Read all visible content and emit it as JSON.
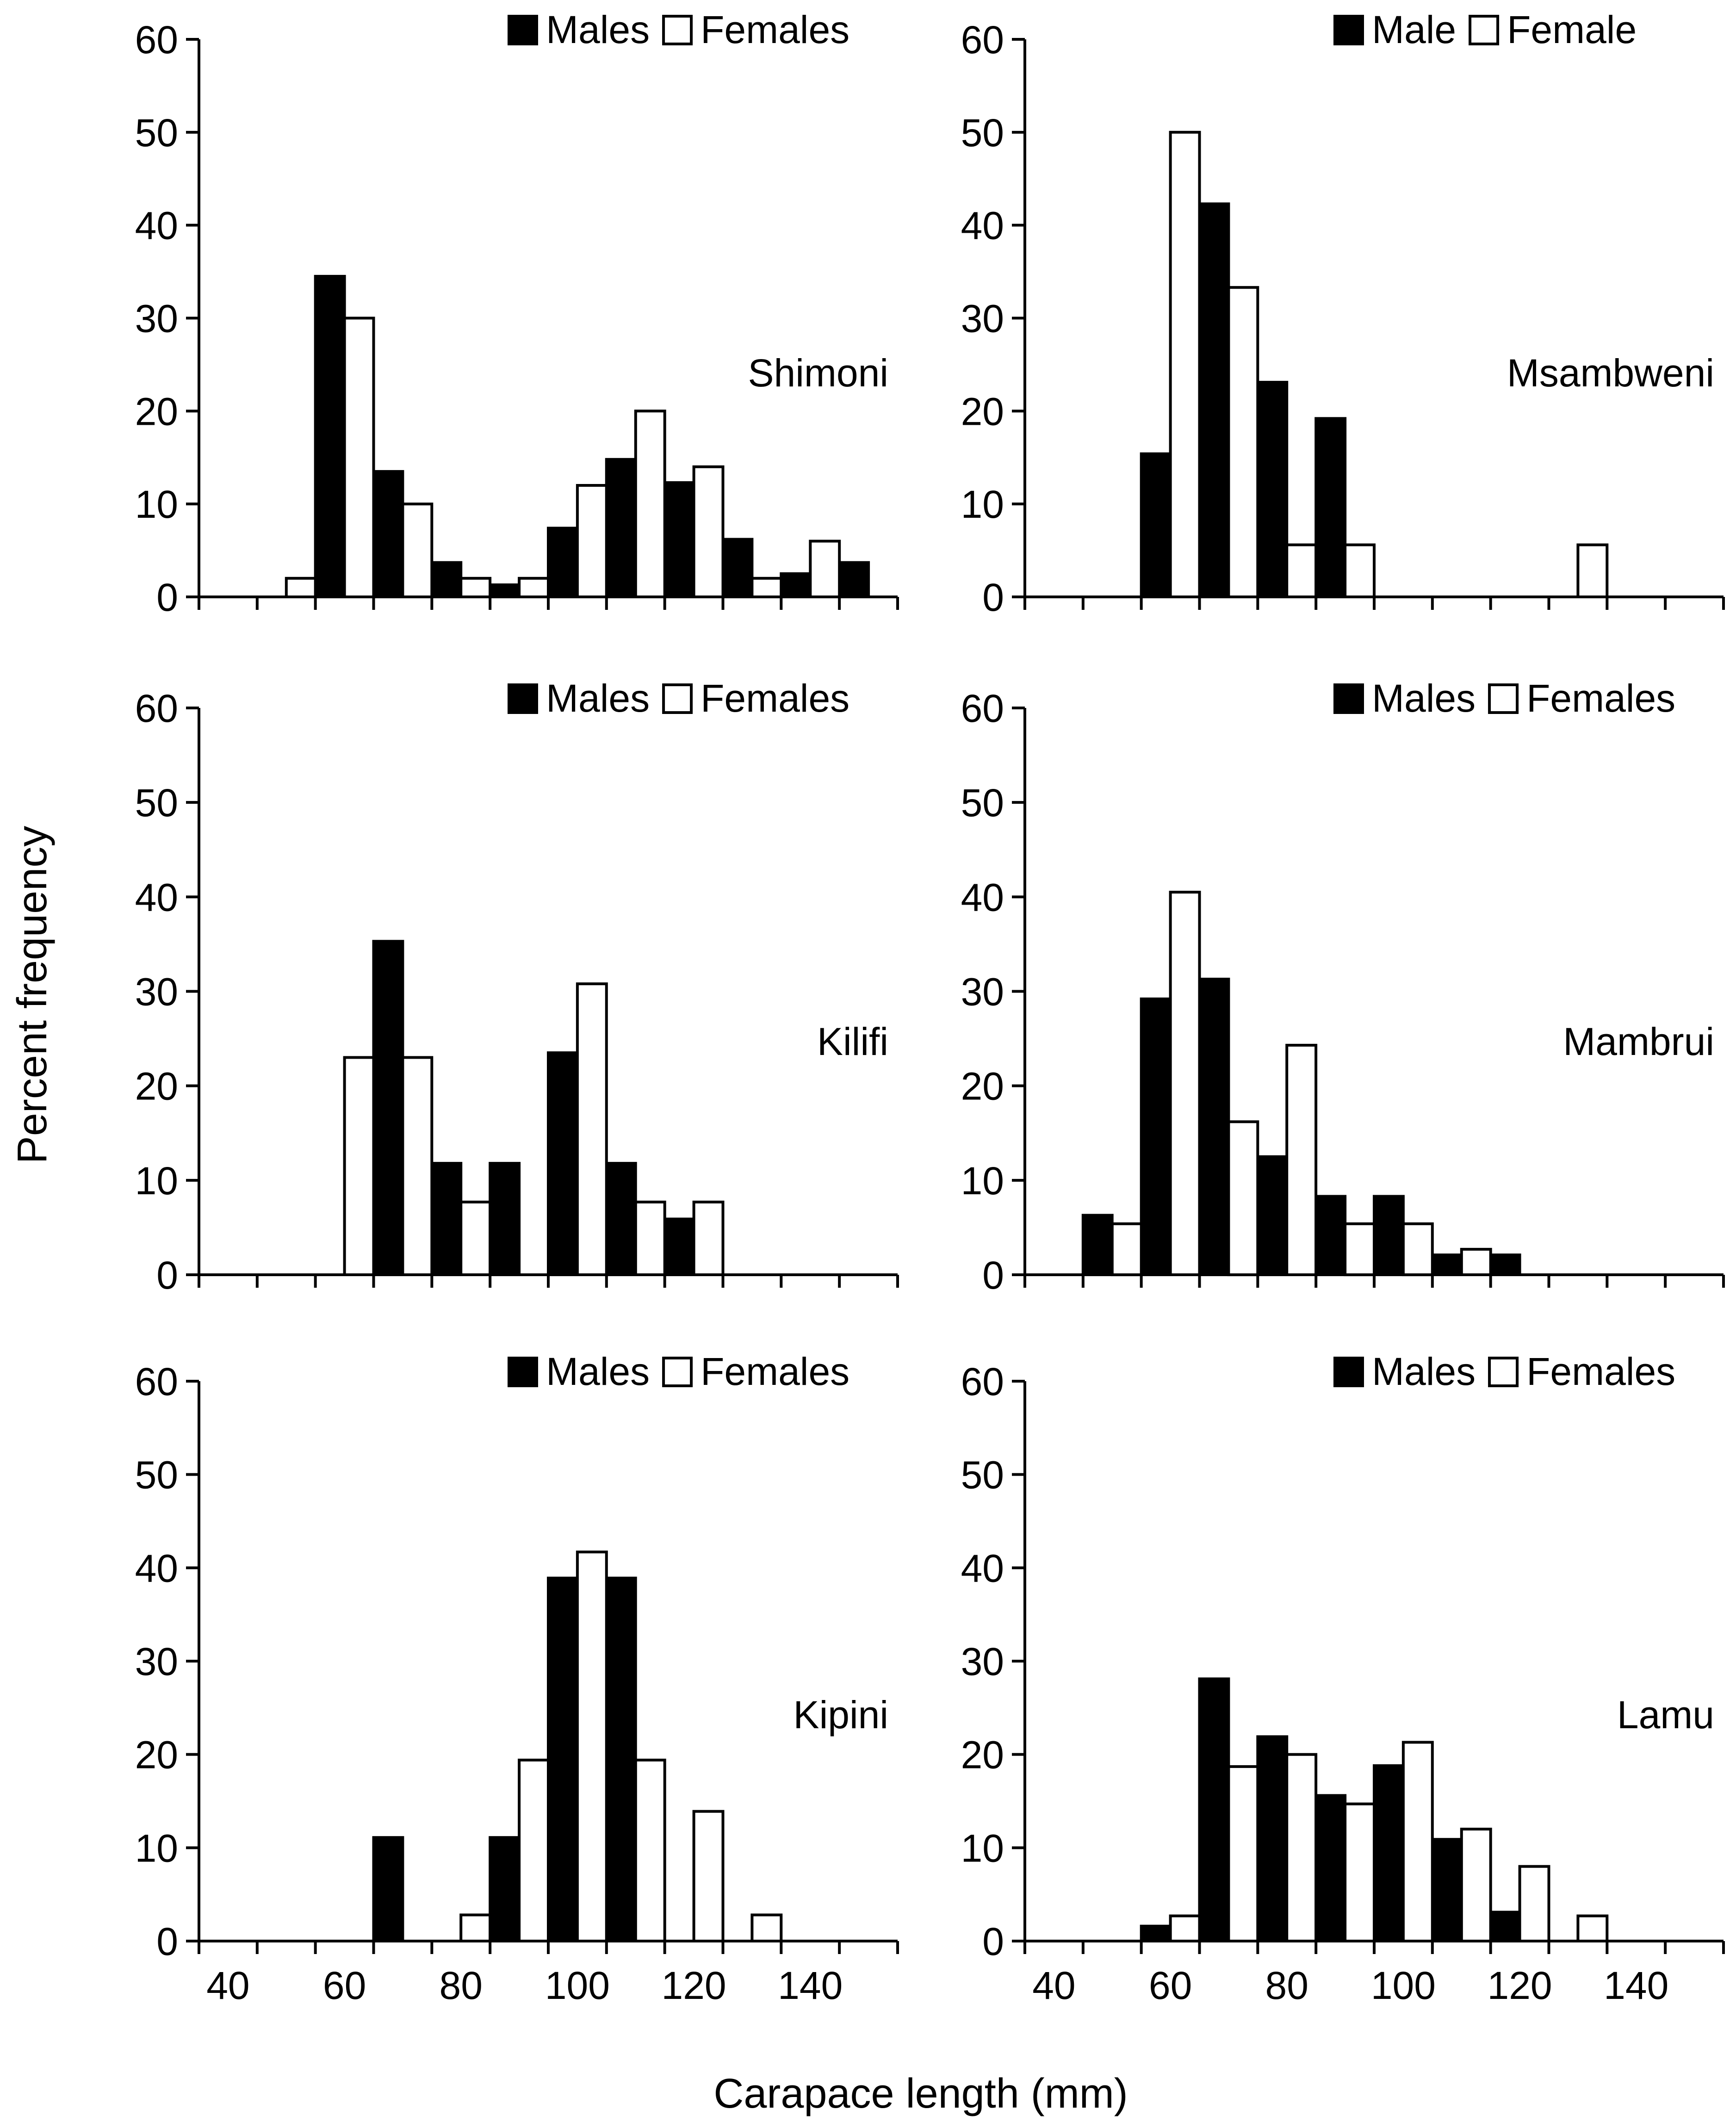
{
  "figure": {
    "ylabel": "Percent   frequency",
    "xlabel": "Carapace   length (mm)"
  },
  "chart_data": [
    {
      "type": "bar",
      "site": "Shimoni",
      "ylim": [
        0,
        60
      ],
      "yticks": [
        0,
        10,
        20,
        30,
        40,
        50,
        60
      ],
      "xticks": [
        40,
        60,
        80,
        100,
        120,
        140
      ],
      "x_range": [
        35,
        155
      ],
      "legend": [
        "Males",
        "Females"
      ],
      "series": [
        {
          "name": "Males",
          "color": "#000000",
          "x": [
            57.5,
            67.5,
            77.5,
            87.5,
            97.5,
            107.5,
            117.5,
            127.5,
            137.5,
            147.5
          ],
          "values": [
            34.5,
            13.5,
            3.7,
            1.3,
            7.4,
            14.8,
            12.3,
            6.2,
            2.5,
            3.7
          ]
        },
        {
          "name": "Females",
          "color": "#ffffff",
          "x": [
            52.5,
            62.5,
            72.5,
            82.5,
            92.5,
            102.5,
            112.5,
            122.5,
            132.5,
            142.5
          ],
          "values": [
            2,
            30,
            10,
            2,
            2,
            12,
            20,
            14,
            2,
            6
          ]
        }
      ]
    },
    {
      "type": "bar",
      "site": "Msambweni",
      "ylim": [
        0,
        60
      ],
      "yticks": [
        0,
        10,
        20,
        30,
        40,
        50,
        60
      ],
      "xticks": [
        40,
        60,
        80,
        100,
        120,
        140
      ],
      "x_range": [
        35,
        155
      ],
      "legend": [
        "Male",
        "Female"
      ],
      "series": [
        {
          "name": "Male",
          "color": "#000000",
          "x": [
            57.5,
            67.5,
            77.5,
            87.5
          ],
          "values": [
            15.4,
            42.3,
            23.1,
            19.2
          ]
        },
        {
          "name": "Female",
          "color": "#ffffff",
          "x": [
            62.5,
            72.5,
            82.5,
            92.5,
            132.5
          ],
          "values": [
            50,
            33.3,
            5.6,
            5.6,
            5.6
          ]
        }
      ]
    },
    {
      "type": "bar",
      "site": "Kilifi",
      "ylim": [
        0,
        60
      ],
      "yticks": [
        0,
        10,
        20,
        30,
        40,
        50,
        60
      ],
      "xticks": [
        40,
        60,
        80,
        100,
        120,
        140
      ],
      "x_range": [
        35,
        155
      ],
      "legend": [
        "Males",
        "Females"
      ],
      "series": [
        {
          "name": "Males",
          "color": "#000000",
          "x": [
            67.5,
            77.5,
            87.5,
            97.5,
            107.5,
            117.5
          ],
          "values": [
            35.3,
            11.8,
            11.8,
            23.5,
            11.8,
            5.9
          ]
        },
        {
          "name": "Females",
          "color": "#ffffff",
          "x": [
            62.5,
            72.5,
            82.5,
            102.5,
            112.5,
            122.5
          ],
          "values": [
            23,
            23,
            7.7,
            30.8,
            7.7,
            7.7
          ]
        }
      ]
    },
    {
      "type": "bar",
      "site": "Mambrui",
      "ylim": [
        0,
        60
      ],
      "yticks": [
        0,
        10,
        20,
        30,
        40,
        50,
        60
      ],
      "xticks": [
        40,
        60,
        80,
        100,
        120,
        140
      ],
      "x_range": [
        35,
        155
      ],
      "legend": [
        "Males",
        "Females"
      ],
      "series": [
        {
          "name": "Males",
          "color": "#000000",
          "x": [
            47.5,
            57.5,
            67.5,
            77.5,
            87.5,
            97.5,
            107.5,
            117.5
          ],
          "values": [
            6.3,
            29.2,
            31.3,
            12.5,
            8.3,
            8.3,
            2.1,
            2.1
          ]
        },
        {
          "name": "Females",
          "color": "#ffffff",
          "x": [
            52.5,
            62.5,
            72.5,
            82.5,
            92.5,
            102.5,
            112.5
          ],
          "values": [
            5.4,
            40.5,
            16.2,
            24.3,
            5.4,
            5.4,
            2.7
          ]
        }
      ]
    },
    {
      "type": "bar",
      "site": "Kipini",
      "ylim": [
        0,
        60
      ],
      "yticks": [
        0,
        10,
        20,
        30,
        40,
        50,
        60
      ],
      "xticks": [
        40,
        60,
        80,
        100,
        120,
        140
      ],
      "x_range": [
        35,
        155
      ],
      "legend": [
        "Males",
        "Females"
      ],
      "series": [
        {
          "name": "Males",
          "color": "#000000",
          "x": [
            67.5,
            87.5,
            97.5,
            107.5
          ],
          "values": [
            11.1,
            11.1,
            38.9,
            38.9
          ]
        },
        {
          "name": "Females",
          "color": "#ffffff",
          "x": [
            82.5,
            92.5,
            102.5,
            112.5,
            122.5,
            132.5
          ],
          "values": [
            2.8,
            19.4,
            41.7,
            19.4,
            13.9,
            2.8
          ]
        }
      ]
    },
    {
      "type": "bar",
      "site": "Lamu",
      "ylim": [
        0,
        60
      ],
      "yticks": [
        0,
        10,
        20,
        30,
        40,
        50,
        60
      ],
      "xticks": [
        40,
        60,
        80,
        100,
        120,
        140
      ],
      "x_range": [
        35,
        155
      ],
      "legend": [
        "Males",
        "Females"
      ],
      "series": [
        {
          "name": "Males",
          "color": "#000000",
          "x": [
            57.5,
            67.5,
            77.5,
            87.5,
            97.5,
            107.5,
            117.5
          ],
          "values": [
            1.6,
            28.1,
            21.9,
            15.6,
            18.8,
            10.9,
            3.1
          ]
        },
        {
          "name": "Females",
          "color": "#ffffff",
          "x": [
            62.5,
            72.5,
            82.5,
            92.5,
            102.5,
            112.5,
            122.5,
            132.5
          ],
          "values": [
            2.7,
            18.7,
            20,
            14.7,
            21.3,
            12,
            8,
            2.7
          ]
        }
      ]
    }
  ]
}
